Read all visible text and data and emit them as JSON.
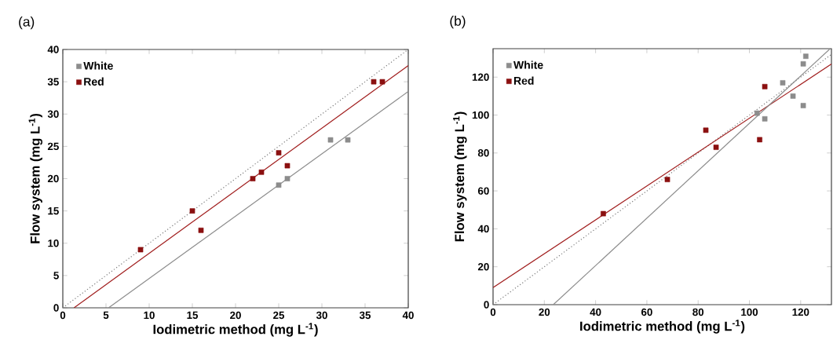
{
  "chart_data": [
    {
      "type": "scatter",
      "title": "(a)",
      "xlabel": "Iodimetric method (mg L$^{-1}$)",
      "ylabel": "Flow system (mg L$^{-1}$)",
      "xlim": [
        0,
        40
      ],
      "ylim": [
        0,
        40
      ],
      "xticks": [
        0,
        5,
        10,
        15,
        20,
        25,
        30,
        35,
        40
      ],
      "yticks": [
        0,
        5,
        10,
        15,
        20,
        25,
        30,
        35,
        40
      ],
      "marker": "square",
      "legend": "top left",
      "grid": false,
      "series": [
        {
          "name": "White",
          "color": "#8c8c8c",
          "x": [
            25,
            26,
            31,
            33
          ],
          "values": [
            19,
            20,
            26,
            26
          ]
        },
        {
          "name": "Red",
          "color": "#8b1010",
          "x": [
            9,
            15,
            16,
            22,
            23,
            25,
            26,
            36,
            37
          ],
          "values": [
            9,
            15,
            12,
            20,
            21,
            24,
            22,
            35,
            35
          ]
        },
        {
          "type": "line",
          "marker": "none",
          "line_style": "dotted",
          "color": "#7a7a7a",
          "x": [
            0,
            40
          ],
          "values": [
            0,
            40
          ]
        },
        {
          "type": "line",
          "marker": "none",
          "line_style": "solid",
          "color": "#a01c1c",
          "x": [
            1.3,
            40
          ],
          "values": [
            0,
            37.5
          ]
        },
        {
          "type": "line",
          "marker": "none",
          "line_style": "solid",
          "color": "#8c8c8c",
          "x": [
            5.3,
            40
          ],
          "values": [
            0,
            33.5
          ]
        }
      ]
    },
    {
      "type": "scatter",
      "title": "(b)",
      "xlabel": "Iodimetric method (mg L$^{-1}$)",
      "ylabel": "Flow system (mg L$^{-1}$)",
      "xlim": [
        0,
        132
      ],
      "ylim": [
        0,
        135
      ],
      "xticks": [
        0,
        20,
        40,
        60,
        80,
        100,
        120
      ],
      "yticks": [
        0,
        20,
        40,
        60,
        80,
        100,
        120
      ],
      "marker": "square",
      "legend": "top left",
      "grid": false,
      "series": [
        {
          "name": "White",
          "color": "#8c8c8c",
          "x": [
            103,
            106,
            113,
            117,
            121,
            121,
            122
          ],
          "values": [
            101,
            98,
            117,
            110,
            105,
            127,
            131
          ]
        },
        {
          "name": "Red",
          "color": "#8b1010",
          "x": [
            43,
            68,
            83,
            87,
            104,
            106
          ],
          "values": [
            48,
            66,
            92,
            83,
            87,
            115
          ]
        },
        {
          "type": "line",
          "marker": "none",
          "line_style": "dotted",
          "color": "#7a7a7a",
          "x": [
            0,
            132
          ],
          "values": [
            0,
            132
          ]
        },
        {
          "type": "line",
          "marker": "none",
          "line_style": "solid",
          "color": "#a01c1c",
          "x": [
            0,
            132
          ],
          "values": [
            9,
            126.9
          ]
        },
        {
          "type": "line",
          "marker": "none",
          "line_style": "solid",
          "color": "#8c8c8c",
          "x": [
            23.5,
            131.5
          ],
          "values": [
            0,
            135
          ]
        }
      ]
    }
  ]
}
